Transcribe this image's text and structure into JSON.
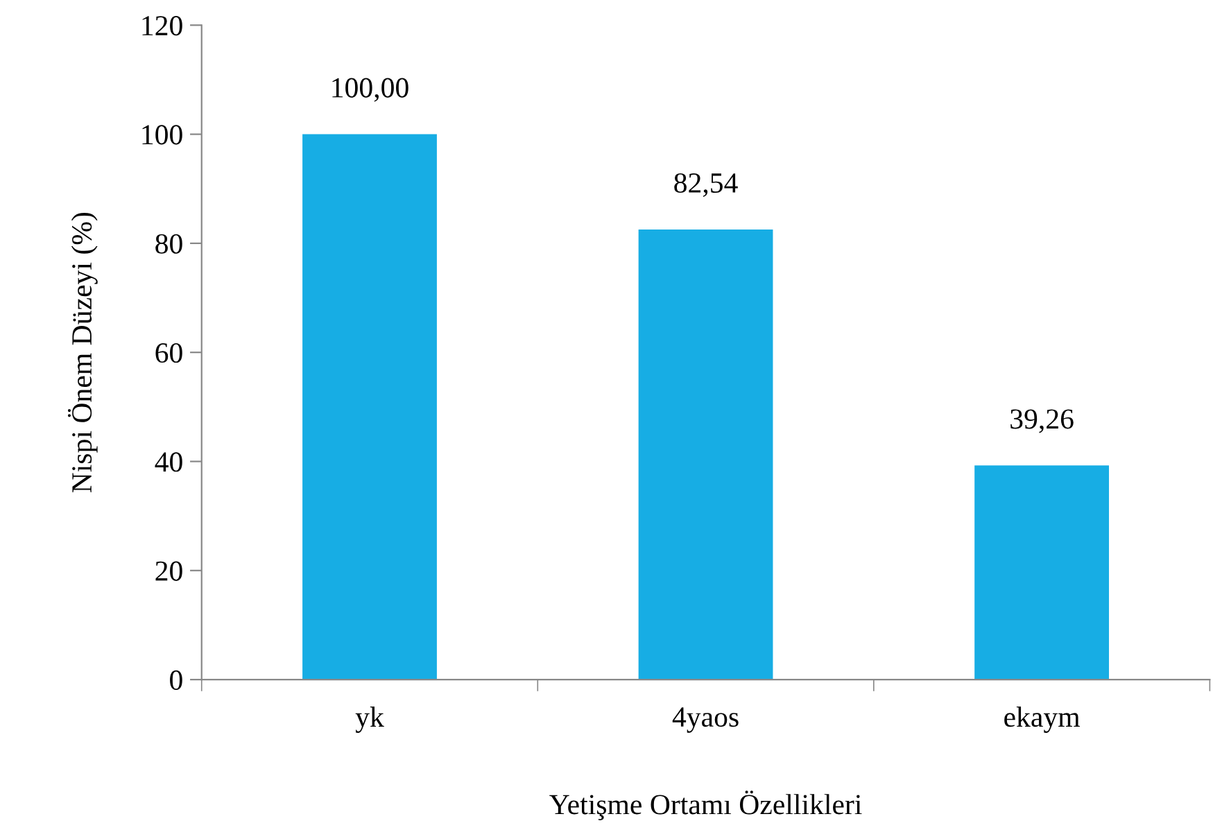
{
  "chart_data": {
    "type": "bar",
    "xlabel": "Yetişme Ortamı Özellikleri",
    "ylabel": "Nispi Önem Düzeyi (%)",
    "categories": [
      "yk",
      "4yaos",
      "ekaym"
    ],
    "values": [
      100,
      82.54,
      39.26
    ],
    "value_labels": [
      "100,00",
      "82,54",
      "39,26"
    ],
    "color": "#17ade4",
    "ylim": [
      0,
      120
    ],
    "yticks": [
      0,
      20,
      40,
      60,
      80,
      100,
      120
    ],
    "grid": false,
    "legend": false
  }
}
